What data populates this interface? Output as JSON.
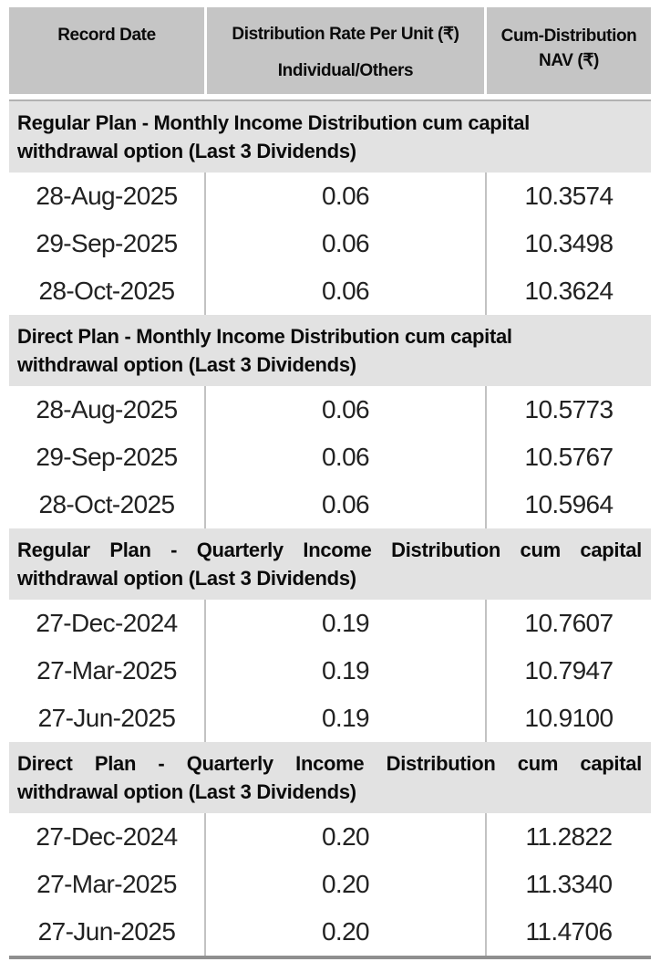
{
  "table": {
    "header": {
      "col1": "Record Date",
      "col2_line1": "Distribution Rate Per Unit (₹)",
      "col2_line2": "Individual/Others",
      "col3_line1": "Cum-Distribution",
      "col3_line2": "NAV (₹)"
    },
    "sections": [
      {
        "title_line1": "Regular Plan - Monthly Income Distribution cum capital",
        "title_line2": "withdrawal option (Last 3 Dividends)",
        "rows": [
          {
            "date": "28-Aug-2025",
            "rate": "0.06",
            "nav": "10.3574"
          },
          {
            "date": "29-Sep-2025",
            "rate": "0.06",
            "nav": "10.3498"
          },
          {
            "date": "28-Oct-2025",
            "rate": "0.06",
            "nav": "10.3624"
          }
        ]
      },
      {
        "title_line1": "Direct Plan - Monthly Income Distribution cum capital",
        "title_line2": "withdrawal option (Last 3 Dividends)",
        "rows": [
          {
            "date": "28-Aug-2025",
            "rate": "0.06",
            "nav": "10.5773"
          },
          {
            "date": "29-Sep-2025",
            "rate": "0.06",
            "nav": "10.5767"
          },
          {
            "date": "28-Oct-2025",
            "rate": "0.06",
            "nav": "10.5964"
          }
        ]
      },
      {
        "title_line1": "Regular Plan - Quarterly Income Distribution cum capital",
        "title_line2": "withdrawal option (Last 3 Dividends)",
        "rows": [
          {
            "date": "27-Dec-2024",
            "rate": "0.19",
            "nav": "10.7607"
          },
          {
            "date": "27-Mar-2025",
            "rate": "0.19",
            "nav": "10.7947"
          },
          {
            "date": "27-Jun-2025",
            "rate": "0.19",
            "nav": "10.9100"
          }
        ]
      },
      {
        "title_line1": "Direct Plan - Quarterly Income Distribution cum capital",
        "title_line2": "withdrawal option (Last 3 Dividends)",
        "rows": [
          {
            "date": "27-Dec-2024",
            "rate": "0.20",
            "nav": "11.2822"
          },
          {
            "date": "27-Mar-2025",
            "rate": "0.20",
            "nav": "11.3340"
          },
          {
            "date": "27-Jun-2025",
            "rate": "0.20",
            "nav": "11.4706"
          }
        ]
      }
    ]
  },
  "colors": {
    "header_bg": "#c5c5c5",
    "section_bg": "#e2e2e2",
    "divider": "#c2c2c2",
    "bottom_rule": "#8f8f8f",
    "text": "#111111"
  }
}
